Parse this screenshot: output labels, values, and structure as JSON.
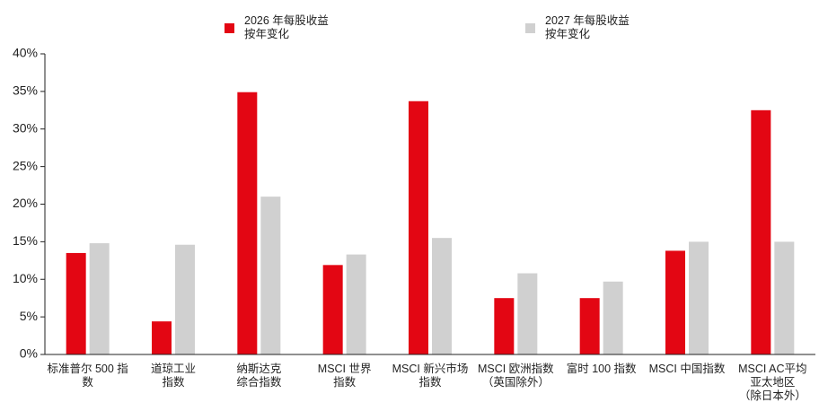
{
  "chart_data": {
    "type": "bar",
    "categories": [
      "标准普尔 500 指数",
      "道琼工业\n指数",
      "纳斯达克\n综合指数",
      "MSCI 世界\n指数",
      "MSCI 新兴市场\n指数",
      "MSCI 欧洲指数\n（英国除外）",
      "富时 100 指数",
      "MSCI 中国指数",
      "MSCI AC平均\n亚太地区\n（除日本外）"
    ],
    "series": [
      {
        "name": "2026 年每股收益\n按年变化",
        "color": "#e30613",
        "values": [
          13.5,
          4.4,
          34.9,
          11.9,
          33.7,
          7.5,
          7.5,
          13.8,
          32.5
        ]
      },
      {
        "name": "2027 年每股收益\n按年变化",
        "color": "#d0d0d0",
        "values": [
          14.8,
          14.6,
          21.0,
          13.3,
          15.5,
          10.8,
          9.7,
          15.0,
          15.0
        ]
      }
    ],
    "ylim": [
      0,
      40
    ],
    "yticks": [
      {
        "value": 0,
        "label": "0%"
      },
      {
        "value": 5,
        "label": "5%"
      },
      {
        "value": 10,
        "label": "10%"
      },
      {
        "value": 15,
        "label": "15%"
      },
      {
        "value": 20,
        "label": "20%"
      },
      {
        "value": 25,
        "label": "25%"
      },
      {
        "value": 30,
        "label": "30%"
      },
      {
        "value": 35,
        "label": "35%"
      },
      {
        "value": 40,
        "label": "40%"
      }
    ]
  }
}
